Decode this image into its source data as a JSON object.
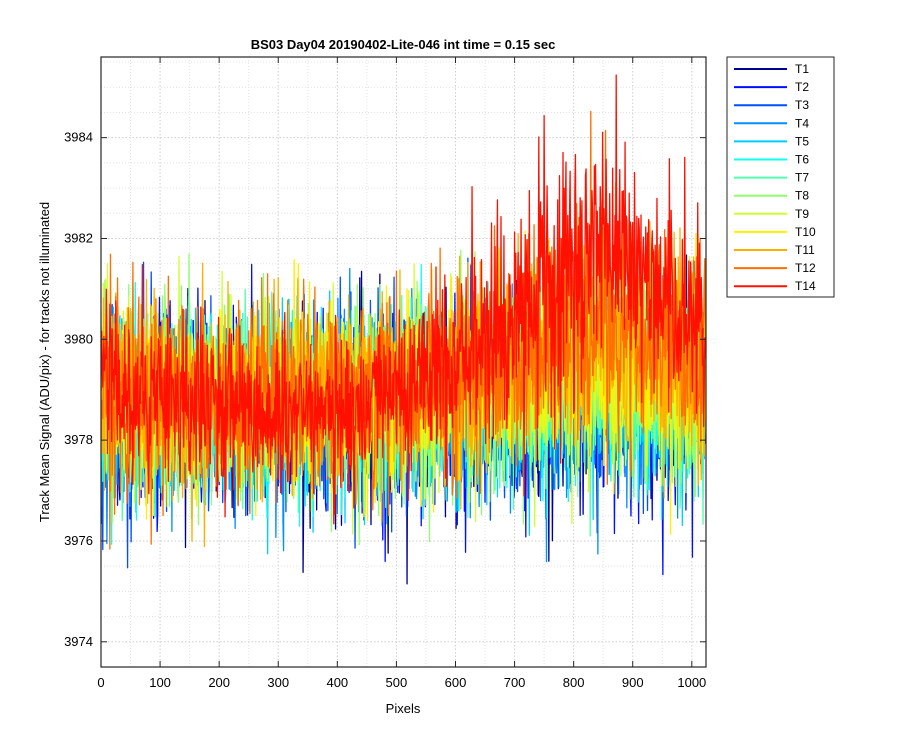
{
  "chart_data": {
    "type": "line",
    "title": "BS03 Day04 20190402-Lite-046 int time = 0.15 sec",
    "xlabel": "Pixels",
    "ylabel": "Track Mean Signal (ADU/pix) - for tracks not illuminated",
    "xlim": [
      0,
      1024
    ],
    "ylim": [
      3973.5,
      3985.6
    ],
    "xticks": [
      0,
      100,
      200,
      300,
      400,
      500,
      600,
      700,
      800,
      900,
      1000
    ],
    "yticks": [
      3974,
      3976,
      3978,
      3980,
      3982,
      3984
    ],
    "grid": "major and minor, dotted",
    "legend_position": "outside-top-right",
    "x_sampling": "every pixel from 0 to 1023",
    "series_profile_description": "each series is a noisy trace; values given at x = 0, 50, 100, ... 1000, 1023 as [mean, noise amplitude]",
    "profile_x": [
      0,
      50,
      100,
      150,
      200,
      250,
      300,
      350,
      400,
      450,
      500,
      550,
      600,
      650,
      700,
      750,
      800,
      850,
      900,
      950,
      1000,
      1023
    ],
    "series": [
      {
        "name": "T1",
        "color": "#00008F",
        "mean": [
          3978.6,
          3978.6,
          3978.5,
          3978.5,
          3978.5,
          3978.5,
          3978.5,
          3978.5,
          3978.6,
          3978.6,
          3978.6,
          3978.6,
          3978.6,
          3978.6,
          3978.7,
          3978.7,
          3978.8,
          3978.8,
          3978.8,
          3978.7,
          3978.7,
          3978.7
        ],
        "amp": [
          1.6,
          1.5,
          1.5,
          1.5,
          1.5,
          1.5,
          1.5,
          1.5,
          1.5,
          1.5,
          1.5,
          1.5,
          1.5,
          1.5,
          1.5,
          1.5,
          1.6,
          1.6,
          1.6,
          1.6,
          1.5,
          1.5
        ]
      },
      {
        "name": "T2",
        "color": "#0010FF",
        "mean": [
          3978.7,
          3978.6,
          3978.6,
          3978.6,
          3978.6,
          3978.6,
          3978.6,
          3978.6,
          3978.6,
          3978.6,
          3978.6,
          3978.6,
          3978.6,
          3978.7,
          3978.7,
          3978.8,
          3978.8,
          3978.8,
          3978.8,
          3978.8,
          3978.7,
          3978.7
        ],
        "amp": [
          1.6,
          1.5,
          1.5,
          1.5,
          1.5,
          1.5,
          1.5,
          1.5,
          1.5,
          1.5,
          1.5,
          1.5,
          1.5,
          1.5,
          1.5,
          1.5,
          1.6,
          1.6,
          1.6,
          1.6,
          1.5,
          1.5
        ]
      },
      {
        "name": "T3",
        "color": "#0050FF",
        "mean": [
          3978.7,
          3978.7,
          3978.6,
          3978.6,
          3978.6,
          3978.6,
          3978.6,
          3978.6,
          3978.6,
          3978.7,
          3978.7,
          3978.7,
          3978.7,
          3978.7,
          3978.8,
          3978.8,
          3978.9,
          3978.9,
          3978.9,
          3978.8,
          3978.8,
          3978.8
        ],
        "amp": [
          1.6,
          1.5,
          1.5,
          1.5,
          1.5,
          1.5,
          1.5,
          1.5,
          1.5,
          1.5,
          1.5,
          1.5,
          1.5,
          1.5,
          1.5,
          1.5,
          1.6,
          1.6,
          1.6,
          1.6,
          1.5,
          1.5
        ]
      },
      {
        "name": "T4",
        "color": "#0090FF",
        "mean": [
          3978.7,
          3978.7,
          3978.7,
          3978.7,
          3978.7,
          3978.7,
          3978.7,
          3978.7,
          3978.7,
          3978.7,
          3978.7,
          3978.7,
          3978.7,
          3978.8,
          3978.8,
          3978.9,
          3979.0,
          3979.0,
          3979.0,
          3978.9,
          3978.8,
          3978.8
        ],
        "amp": [
          1.6,
          1.5,
          1.5,
          1.5,
          1.5,
          1.5,
          1.5,
          1.5,
          1.5,
          1.5,
          1.5,
          1.5,
          1.5,
          1.5,
          1.5,
          1.6,
          1.6,
          1.6,
          1.6,
          1.6,
          1.5,
          1.5
        ]
      },
      {
        "name": "T5",
        "color": "#00CFFF",
        "mean": [
          3978.8,
          3978.7,
          3978.7,
          3978.7,
          3978.7,
          3978.7,
          3978.7,
          3978.7,
          3978.7,
          3978.7,
          3978.7,
          3978.7,
          3978.8,
          3978.8,
          3978.9,
          3979.0,
          3979.1,
          3979.1,
          3979.1,
          3979.0,
          3978.9,
          3978.9
        ],
        "amp": [
          1.6,
          1.5,
          1.5,
          1.5,
          1.5,
          1.5,
          1.5,
          1.5,
          1.5,
          1.5,
          1.5,
          1.5,
          1.5,
          1.5,
          1.6,
          1.6,
          1.6,
          1.6,
          1.6,
          1.6,
          1.5,
          1.5
        ]
      },
      {
        "name": "T6",
        "color": "#10FFEF",
        "mean": [
          3978.8,
          3978.8,
          3978.7,
          3978.7,
          3978.7,
          3978.7,
          3978.7,
          3978.7,
          3978.7,
          3978.7,
          3978.8,
          3978.8,
          3978.8,
          3978.9,
          3979.0,
          3979.1,
          3979.2,
          3979.2,
          3979.2,
          3979.1,
          3979.0,
          3979.0
        ],
        "amp": [
          1.6,
          1.5,
          1.5,
          1.5,
          1.5,
          1.5,
          1.5,
          1.5,
          1.5,
          1.5,
          1.5,
          1.5,
          1.5,
          1.5,
          1.6,
          1.6,
          1.6,
          1.6,
          1.6,
          1.6,
          1.5,
          1.5
        ]
      },
      {
        "name": "T7",
        "color": "#50FFAF",
        "mean": [
          3978.8,
          3978.8,
          3978.8,
          3978.8,
          3978.8,
          3978.8,
          3978.8,
          3978.8,
          3978.8,
          3978.8,
          3978.8,
          3978.8,
          3978.9,
          3979.0,
          3979.1,
          3979.2,
          3979.3,
          3979.3,
          3979.3,
          3979.2,
          3979.1,
          3979.0
        ],
        "amp": [
          1.6,
          1.5,
          1.5,
          1.5,
          1.5,
          1.5,
          1.5,
          1.5,
          1.5,
          1.5,
          1.5,
          1.5,
          1.5,
          1.5,
          1.6,
          1.6,
          1.6,
          1.6,
          1.6,
          1.6,
          1.5,
          1.5
        ]
      },
      {
        "name": "T8",
        "color": "#90FF6F",
        "mean": [
          3978.9,
          3978.8,
          3978.8,
          3978.8,
          3978.8,
          3978.8,
          3978.8,
          3978.8,
          3978.8,
          3978.8,
          3978.8,
          3978.9,
          3978.9,
          3979.0,
          3979.2,
          3979.3,
          3979.4,
          3979.5,
          3979.4,
          3979.3,
          3979.1,
          3979.1
        ],
        "amp": [
          1.6,
          1.5,
          1.5,
          1.5,
          1.5,
          1.5,
          1.5,
          1.5,
          1.5,
          1.5,
          1.5,
          1.5,
          1.5,
          1.6,
          1.6,
          1.6,
          1.7,
          1.7,
          1.7,
          1.6,
          1.6,
          1.6
        ]
      },
      {
        "name": "T9",
        "color": "#CFFF30",
        "mean": [
          3978.9,
          3978.9,
          3978.8,
          3978.8,
          3978.8,
          3978.8,
          3978.8,
          3978.8,
          3978.8,
          3978.9,
          3978.9,
          3978.9,
          3979.0,
          3979.1,
          3979.3,
          3979.4,
          3979.6,
          3979.6,
          3979.5,
          3979.4,
          3979.2,
          3979.2
        ],
        "amp": [
          1.6,
          1.5,
          1.5,
          1.5,
          1.5,
          1.5,
          1.5,
          1.5,
          1.5,
          1.5,
          1.5,
          1.5,
          1.5,
          1.6,
          1.6,
          1.7,
          1.7,
          1.7,
          1.7,
          1.6,
          1.6,
          1.6
        ]
      },
      {
        "name": "T10",
        "color": "#FFEF00",
        "mean": [
          3979.0,
          3978.9,
          3978.9,
          3978.9,
          3978.9,
          3978.9,
          3978.9,
          3978.9,
          3978.9,
          3978.9,
          3978.9,
          3979.0,
          3979.1,
          3979.2,
          3979.4,
          3979.6,
          3979.8,
          3979.8,
          3979.7,
          3979.5,
          3979.3,
          3979.3
        ],
        "amp": [
          1.7,
          1.5,
          1.5,
          1.5,
          1.5,
          1.5,
          1.5,
          1.5,
          1.5,
          1.5,
          1.5,
          1.5,
          1.6,
          1.6,
          1.7,
          1.7,
          1.8,
          1.8,
          1.7,
          1.7,
          1.6,
          1.6
        ]
      },
      {
        "name": "T11",
        "color": "#FFAF00",
        "mean": [
          3979.0,
          3978.9,
          3978.9,
          3978.9,
          3978.9,
          3978.9,
          3978.9,
          3978.9,
          3978.9,
          3979.0,
          3979.0,
          3979.1,
          3979.2,
          3979.4,
          3979.6,
          3979.8,
          3980.1,
          3980.1,
          3979.9,
          3979.7,
          3979.5,
          3979.4
        ],
        "amp": [
          1.7,
          1.5,
          1.5,
          1.5,
          1.5,
          1.5,
          1.5,
          1.5,
          1.5,
          1.5,
          1.5,
          1.5,
          1.6,
          1.6,
          1.7,
          1.8,
          1.8,
          1.8,
          1.8,
          1.7,
          1.6,
          1.6
        ]
      },
      {
        "name": "T12",
        "color": "#FF6F00",
        "mean": [
          3979.0,
          3978.9,
          3978.9,
          3978.9,
          3978.9,
          3978.9,
          3978.9,
          3978.9,
          3979.0,
          3979.0,
          3979.1,
          3979.2,
          3979.4,
          3979.6,
          3979.9,
          3980.2,
          3980.5,
          3980.5,
          3980.2,
          3980.0,
          3979.7,
          3979.6
        ],
        "amp": [
          1.7,
          1.5,
          1.5,
          1.5,
          1.5,
          1.5,
          1.5,
          1.5,
          1.5,
          1.5,
          1.5,
          1.6,
          1.6,
          1.7,
          1.7,
          1.8,
          1.9,
          1.9,
          1.8,
          1.8,
          1.7,
          1.7
        ]
      },
      {
        "name": "T14",
        "color": "#FF1000",
        "mean": [
          3979.3,
          3978.9,
          3978.7,
          3978.7,
          3978.7,
          3978.6,
          3978.6,
          3978.7,
          3978.8,
          3978.9,
          3979.1,
          3979.3,
          3979.6,
          3980.0,
          3980.7,
          3981.2,
          3981.7,
          3981.8,
          3981.4,
          3980.8,
          3980.2,
          3979.9
        ],
        "amp": [
          1.8,
          1.3,
          1.2,
          1.2,
          1.2,
          1.2,
          1.2,
          1.2,
          1.2,
          1.3,
          1.3,
          1.4,
          1.5,
          1.6,
          1.8,
          2.0,
          2.1,
          2.1,
          2.0,
          1.9,
          1.7,
          1.6
        ]
      }
    ]
  }
}
